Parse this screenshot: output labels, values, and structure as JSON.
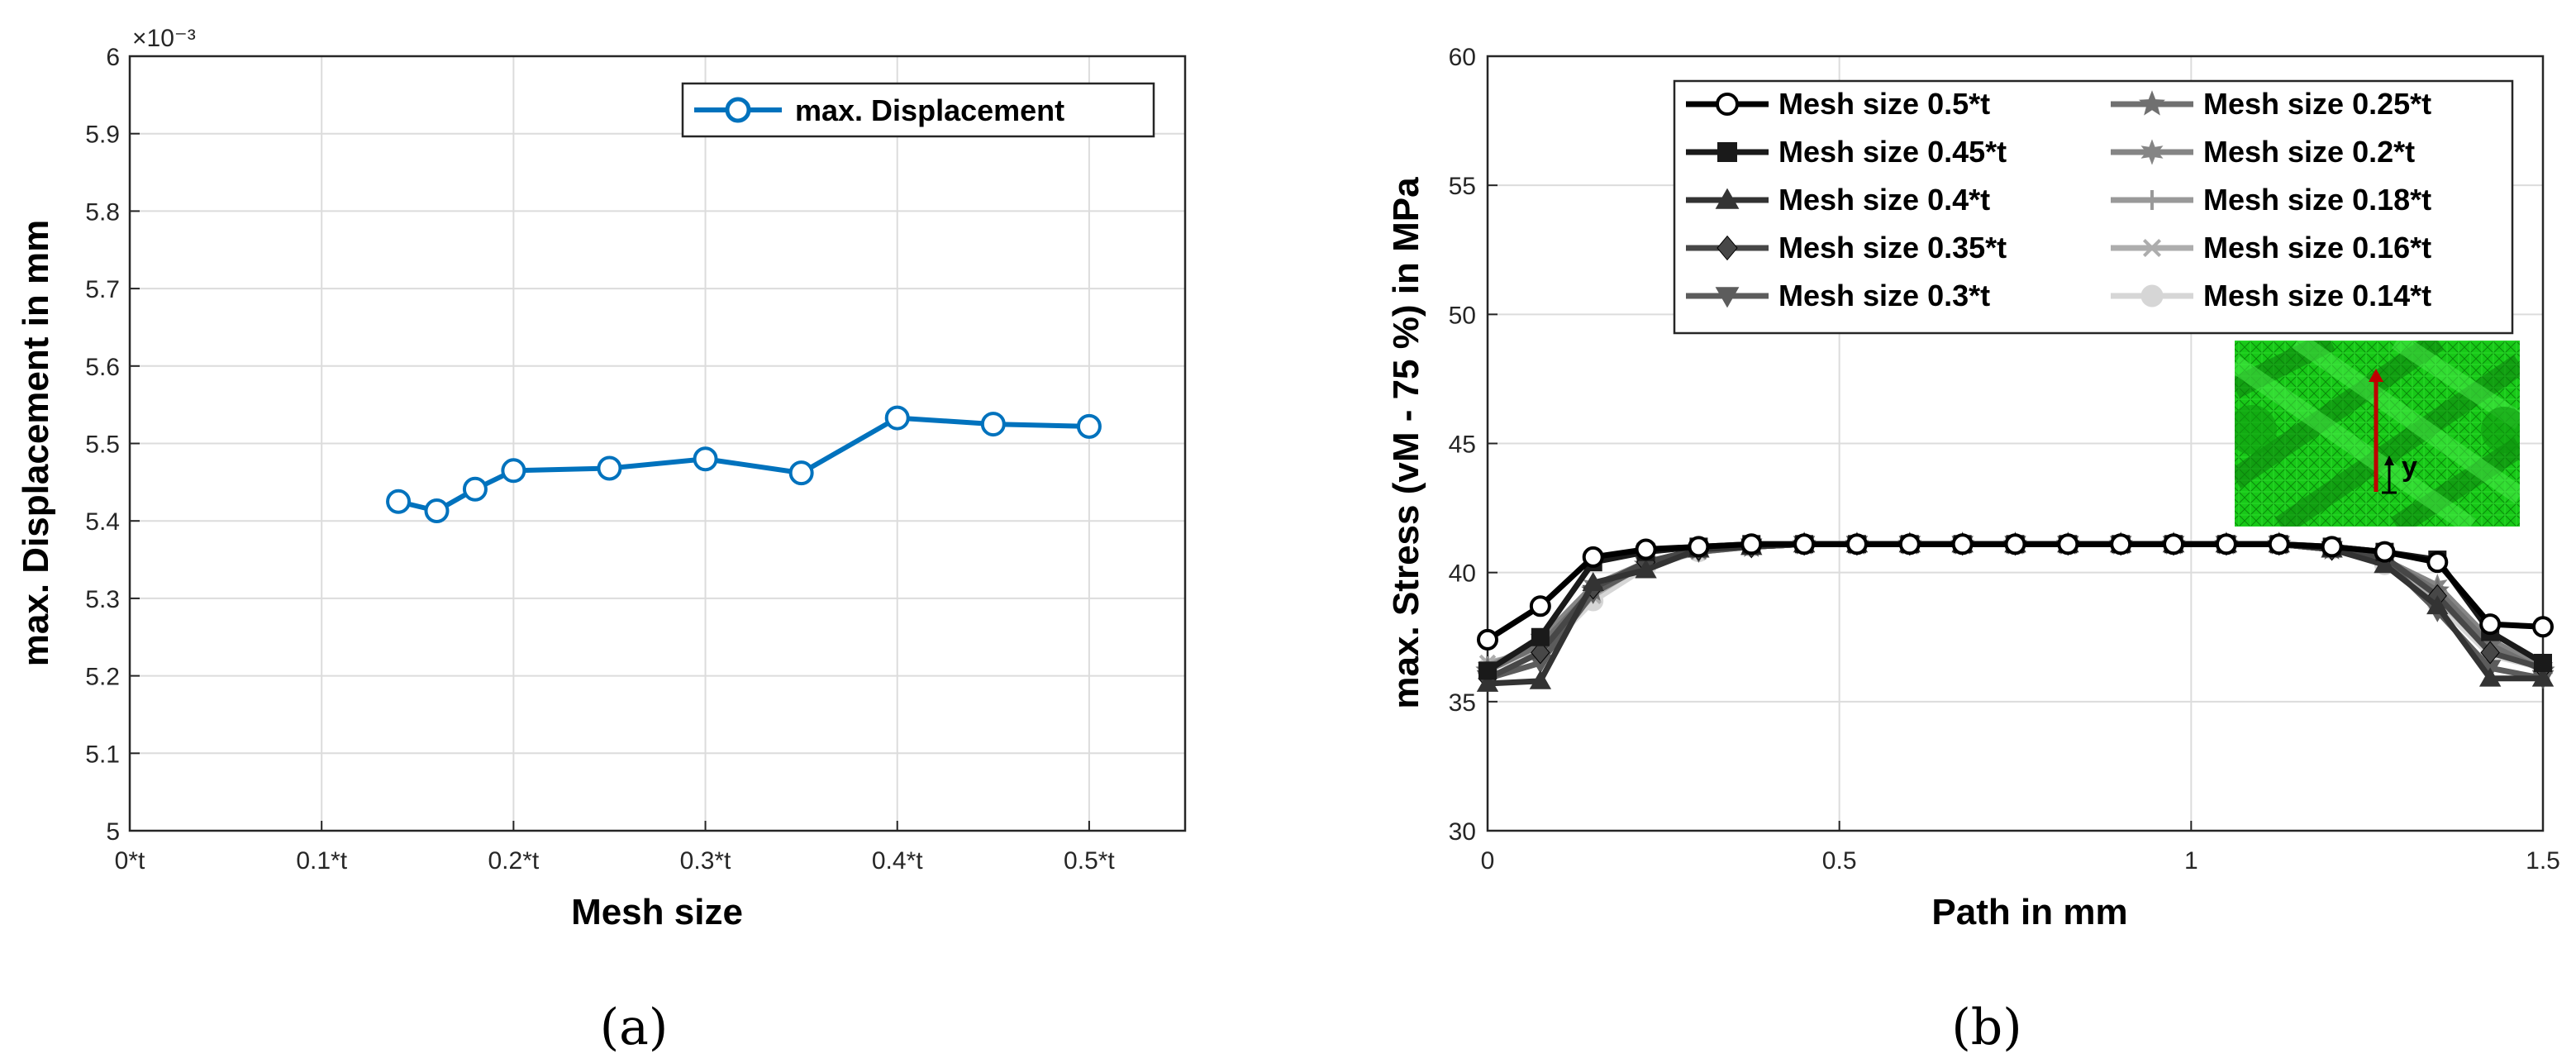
{
  "chart_data": [
    {
      "type": "line",
      "caption": "(a)",
      "xlabel": "Mesh size",
      "ylabel": "max. Displacement in mm",
      "exponent_label": "×10⁻³",
      "xlim": [
        0,
        0.55
      ],
      "ylim": [
        5.0,
        6.0
      ],
      "xticks": [
        0,
        0.1,
        0.2,
        0.3,
        0.4,
        0.5
      ],
      "xtick_labels": [
        "0*t",
        "0.1*t",
        "0.2*t",
        "0.3*t",
        "0.4*t",
        "0.5*t"
      ],
      "yticks": [
        5,
        5.1,
        5.2,
        5.3,
        5.4,
        5.5,
        5.6,
        5.7,
        5.8,
        5.9,
        6
      ],
      "ytick_labels": [
        "5",
        "5.1",
        "5.2",
        "5.3",
        "5.4",
        "5.5",
        "5.6",
        "5.7",
        "5.8",
        "5.9",
        "6"
      ],
      "grid": true,
      "legend_position": "top-right",
      "series": [
        {
          "name": "max. Displacement",
          "color": "#0072BD",
          "marker": "circle",
          "x": [
            0.14,
            0.16,
            0.18,
            0.2,
            0.25,
            0.3,
            0.35,
            0.4,
            0.45,
            0.5
          ],
          "y": [
            5.425,
            5.413,
            5.441,
            5.465,
            5.468,
            5.48,
            5.462,
            5.533,
            5.525,
            5.522
          ]
        }
      ]
    },
    {
      "type": "line",
      "caption": "(b)",
      "xlabel": "Path in mm",
      "ylabel": "max. Stress (vM - 75 %) in MPa",
      "xlim": [
        0,
        1.5
      ],
      "ylim": [
        30,
        60
      ],
      "xticks": [
        0,
        0.5,
        1,
        1.5
      ],
      "xtick_labels": [
        "0",
        "0.5",
        "1",
        "1.5"
      ],
      "yticks": [
        30,
        35,
        40,
        45,
        50,
        55,
        60
      ],
      "ytick_labels": [
        "30",
        "35",
        "40",
        "45",
        "50",
        "55",
        "60"
      ],
      "grid": true,
      "legend_position": "top-right",
      "inset_label": "y",
      "x": [
        0,
        0.075,
        0.15,
        0.225,
        0.3,
        0.375,
        0.45,
        0.525,
        0.6,
        0.675,
        0.75,
        0.825,
        0.9,
        0.975,
        1.05,
        1.125,
        1.2,
        1.275,
        1.35,
        1.425,
        1.5
      ],
      "series": [
        {
          "name": "Mesh size 0.5*t",
          "color": "#000000",
          "marker": "circle",
          "values": [
            37.4,
            38.7,
            40.6,
            40.9,
            41.0,
            41.1,
            41.1,
            41.1,
            41.1,
            41.1,
            41.1,
            41.1,
            41.1,
            41.1,
            41.1,
            41.1,
            41.0,
            40.8,
            40.4,
            38.0,
            37.9
          ]
        },
        {
          "name": "Mesh size 0.45*t",
          "color": "#1a1a1a",
          "marker": "square",
          "values": [
            36.2,
            37.5,
            40.4,
            40.8,
            41.0,
            41.1,
            41.1,
            41.1,
            41.1,
            41.1,
            41.1,
            41.1,
            41.1,
            41.1,
            41.1,
            41.1,
            41.0,
            40.8,
            40.5,
            37.7,
            36.5
          ]
        },
        {
          "name": "Mesh size 0.4*t",
          "color": "#333333",
          "marker": "triangle-up",
          "values": [
            35.7,
            35.8,
            39.6,
            40.1,
            40.9,
            41.0,
            41.1,
            41.1,
            41.1,
            41.1,
            41.1,
            41.1,
            41.1,
            41.1,
            41.1,
            41.1,
            40.9,
            40.3,
            38.7,
            35.9,
            35.9
          ]
        },
        {
          "name": "Mesh size 0.35*t",
          "color": "#474747",
          "marker": "diamond",
          "values": [
            35.9,
            36.9,
            39.4,
            40.4,
            40.9,
            41.0,
            41.1,
            41.1,
            41.1,
            41.1,
            41.1,
            41.1,
            41.1,
            41.1,
            41.1,
            41.1,
            40.9,
            40.6,
            39.1,
            36.9,
            36.3
          ]
        },
        {
          "name": "Mesh size 0.3*t",
          "color": "#5c5c5c",
          "marker": "triangle-down",
          "values": [
            35.9,
            36.5,
            39.2,
            40.3,
            40.8,
            41.0,
            41.1,
            41.1,
            41.1,
            41.1,
            41.1,
            41.1,
            41.1,
            41.1,
            41.1,
            41.1,
            40.9,
            40.5,
            38.5,
            36.3,
            35.9
          ]
        },
        {
          "name": "Mesh size 0.25*t",
          "color": "#707070",
          "marker": "star",
          "values": [
            36.2,
            37.2,
            39.3,
            40.3,
            40.9,
            41.0,
            41.1,
            41.1,
            41.1,
            41.1,
            41.1,
            41.1,
            41.1,
            41.1,
            41.1,
            41.1,
            40.9,
            40.5,
            39.3,
            37.2,
            36.2
          ]
        },
        {
          "name": "Mesh size 0.2*t",
          "color": "#858585",
          "marker": "star6",
          "values": [
            36.3,
            37.4,
            39.5,
            40.4,
            40.9,
            41.0,
            41.1,
            41.1,
            41.1,
            41.1,
            41.1,
            41.1,
            41.1,
            41.1,
            41.1,
            41.1,
            40.9,
            40.5,
            39.5,
            37.4,
            36.3
          ]
        },
        {
          "name": "Mesh size 0.18*t",
          "color": "#999999",
          "marker": "plus",
          "values": [
            36.4,
            37.2,
            39.4,
            40.4,
            40.9,
            41.0,
            41.1,
            41.1,
            41.1,
            41.1,
            41.1,
            41.1,
            41.1,
            41.1,
            41.1,
            41.1,
            40.9,
            40.5,
            39.3,
            37.2,
            36.4
          ]
        },
        {
          "name": "Mesh size 0.16*t",
          "color": "#adadad",
          "marker": "cross",
          "values": [
            36.5,
            37.0,
            39.1,
            40.4,
            40.8,
            41.0,
            41.1,
            41.1,
            41.1,
            41.1,
            41.1,
            41.1,
            41.1,
            41.1,
            41.1,
            41.1,
            40.9,
            40.4,
            39.0,
            37.0,
            36.5
          ]
        },
        {
          "name": "Mesh size 0.14*t",
          "color": "#d6d6d6",
          "marker": "circle-filled",
          "values": [
            36.3,
            36.8,
            38.9,
            40.2,
            40.8,
            41.0,
            41.1,
            41.1,
            41.1,
            41.1,
            41.1,
            41.1,
            41.1,
            41.1,
            41.1,
            41.1,
            40.9,
            40.3,
            38.8,
            36.8,
            36.3
          ]
        }
      ]
    }
  ]
}
